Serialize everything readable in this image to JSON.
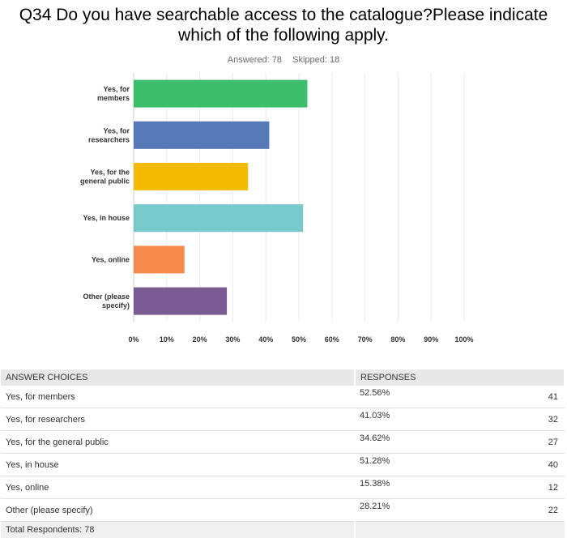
{
  "question": {
    "title_line1": "Q34 Do you have searchable access to the catalogue?Please indicate",
    "title_line2": "which of the following apply.",
    "answered": "Answered: 78",
    "skipped": "Skipped: 18"
  },
  "chart_data": {
    "type": "bar",
    "orientation": "horizontal",
    "categories": [
      "Yes, for members",
      "Yes, for researchers",
      "Yes, for the general public",
      "Yes, in house",
      "Yes, online",
      "Other (please specify)"
    ],
    "category_label_lines": [
      [
        "Yes, for",
        "members"
      ],
      [
        "Yes, for",
        "researchers"
      ],
      [
        "Yes, for the",
        "general public"
      ],
      [
        "Yes, in house"
      ],
      [
        "Yes, online"
      ],
      [
        "Other (please",
        "specify)"
      ]
    ],
    "values": [
      52.56,
      41.03,
      34.62,
      51.28,
      15.38,
      28.21
    ],
    "colors": [
      "#3cbe6c",
      "#5779b8",
      "#f4bc00",
      "#78c9cb",
      "#f68a4c",
      "#7b5c92"
    ],
    "xlim": [
      0,
      100
    ],
    "x_ticks": [
      "0%",
      "10%",
      "20%",
      "30%",
      "40%",
      "50%",
      "60%",
      "70%",
      "80%",
      "90%",
      "100%"
    ],
    "grid": true
  },
  "table": {
    "headers": [
      "ANSWER CHOICES",
      "RESPONSES"
    ],
    "rows": [
      {
        "choice": "Yes, for members",
        "pct": "52.56%",
        "count": "41"
      },
      {
        "choice": "Yes, for researchers",
        "pct": "41.03%",
        "count": "32"
      },
      {
        "choice": "Yes, for the general public",
        "pct": "34.62%",
        "count": "27"
      },
      {
        "choice": "Yes, in house",
        "pct": "51.28%",
        "count": "40"
      },
      {
        "choice": "Yes, online",
        "pct": "15.38%",
        "count": "12"
      },
      {
        "choice": "Other (please specify)",
        "pct": "28.21%",
        "count": "22"
      }
    ],
    "total": "Total Respondents: 78"
  }
}
